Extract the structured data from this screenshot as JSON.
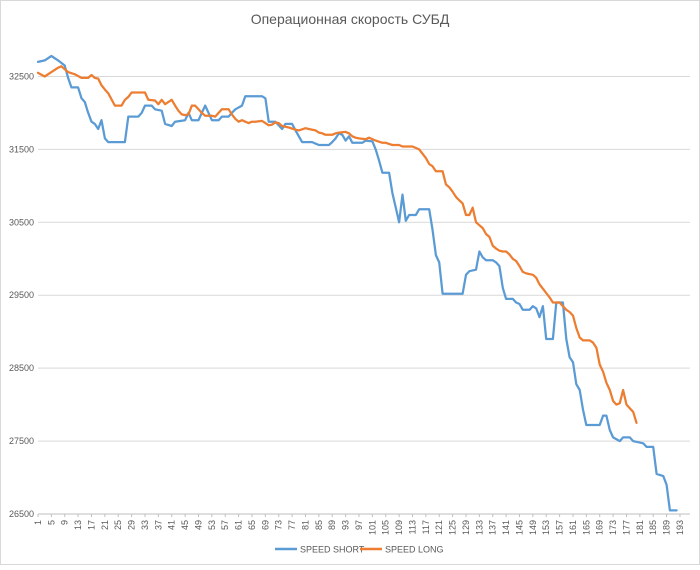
{
  "chart_data": {
    "type": "line",
    "title": "Операционная скорость СУБД",
    "xlabel": "",
    "ylabel": "",
    "x_range": [
      1,
      196
    ],
    "ylim": [
      26500,
      33000
    ],
    "y_ticks": [
      26500,
      27500,
      28500,
      29500,
      30500,
      31500,
      32500
    ],
    "x_tick_labels": [
      1,
      5,
      9,
      13,
      17,
      21,
      25,
      29,
      33,
      37,
      41,
      45,
      49,
      53,
      57,
      61,
      65,
      69,
      73,
      77,
      81,
      85,
      89,
      93,
      97,
      101,
      105,
      109,
      113,
      117,
      121,
      125,
      129,
      133,
      137,
      141,
      145,
      149,
      153,
      157,
      161,
      165,
      169,
      173,
      177,
      181,
      185,
      189,
      193
    ],
    "grid": "horizontal",
    "legend_position": "bottom",
    "series": [
      {
        "name": "SPEED SHORT",
        "color": "#5B9BD5",
        "points": [
          [
            1,
            32700
          ],
          [
            3,
            32720
          ],
          [
            5,
            32780
          ],
          [
            7,
            32720
          ],
          [
            9,
            32650
          ],
          [
            10,
            32480
          ],
          [
            11,
            32350
          ],
          [
            13,
            32350
          ],
          [
            14,
            32200
          ],
          [
            15,
            32150
          ],
          [
            16,
            32000
          ],
          [
            17,
            31880
          ],
          [
            18,
            31850
          ],
          [
            19,
            31780
          ],
          [
            20,
            31900
          ],
          [
            21,
            31650
          ],
          [
            22,
            31600
          ],
          [
            27,
            31600
          ],
          [
            28,
            31950
          ],
          [
            31,
            31950
          ],
          [
            32,
            32000
          ],
          [
            33,
            32100
          ],
          [
            35,
            32100
          ],
          [
            36,
            32050
          ],
          [
            38,
            32030
          ],
          [
            39,
            31850
          ],
          [
            41,
            31820
          ],
          [
            42,
            31880
          ],
          [
            45,
            31900
          ],
          [
            46,
            32000
          ],
          [
            47,
            31900
          ],
          [
            49,
            31900
          ],
          [
            50,
            32000
          ],
          [
            51,
            32100
          ],
          [
            53,
            31900
          ],
          [
            55,
            31900
          ],
          [
            56,
            31950
          ],
          [
            58,
            31950
          ],
          [
            59,
            32000
          ],
          [
            60,
            32050
          ],
          [
            62,
            32100
          ],
          [
            63,
            32230
          ],
          [
            68,
            32230
          ],
          [
            69,
            32200
          ],
          [
            70,
            31880
          ],
          [
            72,
            31880
          ],
          [
            74,
            31780
          ],
          [
            75,
            31850
          ],
          [
            77,
            31850
          ],
          [
            78,
            31760
          ],
          [
            80,
            31600
          ],
          [
            83,
            31600
          ],
          [
            84,
            31580
          ],
          [
            85,
            31560
          ],
          [
            88,
            31560
          ],
          [
            89,
            31600
          ],
          [
            90,
            31650
          ],
          [
            91,
            31720
          ],
          [
            92,
            31700
          ],
          [
            93,
            31620
          ],
          [
            94,
            31680
          ],
          [
            95,
            31590
          ],
          [
            98,
            31590
          ],
          [
            99,
            31620
          ],
          [
            101,
            31610
          ],
          [
            102,
            31500
          ],
          [
            103,
            31350
          ],
          [
            104,
            31180
          ],
          [
            106,
            31180
          ],
          [
            107,
            30900
          ],
          [
            108,
            30700
          ],
          [
            109,
            30500
          ],
          [
            110,
            30880
          ],
          [
            111,
            30520
          ],
          [
            112,
            30600
          ],
          [
            114,
            30600
          ],
          [
            115,
            30680
          ],
          [
            118,
            30680
          ],
          [
            119,
            30400
          ],
          [
            120,
            30050
          ],
          [
            121,
            29950
          ],
          [
            122,
            29520
          ],
          [
            128,
            29520
          ],
          [
            129,
            29780
          ],
          [
            130,
            29830
          ],
          [
            132,
            29850
          ],
          [
            133,
            30100
          ],
          [
            134,
            30020
          ],
          [
            135,
            29980
          ],
          [
            137,
            29980
          ],
          [
            138,
            29950
          ],
          [
            139,
            29900
          ],
          [
            140,
            29600
          ],
          [
            141,
            29450
          ],
          [
            143,
            29450
          ],
          [
            144,
            29400
          ],
          [
            145,
            29380
          ],
          [
            146,
            29300
          ],
          [
            148,
            29300
          ],
          [
            149,
            29350
          ],
          [
            150,
            29320
          ],
          [
            151,
            29200
          ],
          [
            152,
            29350
          ],
          [
            153,
            28900
          ],
          [
            155,
            28900
          ],
          [
            156,
            29400
          ],
          [
            158,
            29400
          ],
          [
            159,
            28900
          ],
          [
            160,
            28650
          ],
          [
            161,
            28580
          ],
          [
            162,
            28280
          ],
          [
            163,
            28200
          ],
          [
            164,
            27930
          ],
          [
            165,
            27720
          ],
          [
            169,
            27720
          ],
          [
            170,
            27850
          ],
          [
            171,
            27850
          ],
          [
            172,
            27650
          ],
          [
            173,
            27550
          ],
          [
            175,
            27500
          ],
          [
            176,
            27550
          ],
          [
            178,
            27550
          ],
          [
            179,
            27500
          ],
          [
            182,
            27470
          ],
          [
            183,
            27420
          ],
          [
            185,
            27420
          ],
          [
            186,
            27050
          ],
          [
            188,
            27020
          ],
          [
            189,
            26900
          ],
          [
            190,
            26550
          ],
          [
            192,
            26550
          ]
        ]
      },
      {
        "name": "SPEED LONG",
        "color": "#ED7D31",
        "points": [
          [
            1,
            32550
          ],
          [
            3,
            32500
          ],
          [
            5,
            32560
          ],
          [
            7,
            32620
          ],
          [
            8,
            32640
          ],
          [
            10,
            32560
          ],
          [
            12,
            32530
          ],
          [
            14,
            32480
          ],
          [
            16,
            32480
          ],
          [
            17,
            32520
          ],
          [
            18,
            32480
          ],
          [
            19,
            32470
          ],
          [
            20,
            32380
          ],
          [
            21,
            32320
          ],
          [
            22,
            32270
          ],
          [
            24,
            32100
          ],
          [
            26,
            32100
          ],
          [
            27,
            32180
          ],
          [
            28,
            32220
          ],
          [
            29,
            32280
          ],
          [
            33,
            32280
          ],
          [
            34,
            32180
          ],
          [
            36,
            32170
          ],
          [
            37,
            32120
          ],
          [
            38,
            32180
          ],
          [
            39,
            32120
          ],
          [
            41,
            32180
          ],
          [
            42,
            32100
          ],
          [
            43,
            32030
          ],
          [
            44,
            31980
          ],
          [
            45,
            31970
          ],
          [
            46,
            31980
          ],
          [
            47,
            32100
          ],
          [
            48,
            32100
          ],
          [
            49,
            32050
          ],
          [
            50,
            32000
          ],
          [
            51,
            31960
          ],
          [
            53,
            31960
          ],
          [
            54,
            31950
          ],
          [
            55,
            32000
          ],
          [
            56,
            32050
          ],
          [
            58,
            32050
          ],
          [
            59,
            31980
          ],
          [
            60,
            31920
          ],
          [
            61,
            31880
          ],
          [
            62,
            31900
          ],
          [
            63,
            31880
          ],
          [
            64,
            31860
          ],
          [
            65,
            31880
          ],
          [
            66,
            31880
          ],
          [
            68,
            31890
          ],
          [
            69,
            31860
          ],
          [
            70,
            31830
          ],
          [
            71,
            31840
          ],
          [
            72,
            31870
          ],
          [
            73,
            31860
          ],
          [
            74,
            31820
          ],
          [
            76,
            31800
          ],
          [
            78,
            31770
          ],
          [
            79,
            31760
          ],
          [
            81,
            31790
          ],
          [
            82,
            31780
          ],
          [
            84,
            31760
          ],
          [
            85,
            31730
          ],
          [
            86,
            31720
          ],
          [
            87,
            31700
          ],
          [
            89,
            31700
          ],
          [
            90,
            31720
          ],
          [
            91,
            31730
          ],
          [
            93,
            31740
          ],
          [
            94,
            31720
          ],
          [
            95,
            31680
          ],
          [
            96,
            31660
          ],
          [
            97,
            31650
          ],
          [
            99,
            31640
          ],
          [
            100,
            31660
          ],
          [
            102,
            31620
          ],
          [
            104,
            31590
          ],
          [
            105,
            31590
          ],
          [
            107,
            31560
          ],
          [
            109,
            31560
          ],
          [
            110,
            31540
          ],
          [
            113,
            31540
          ],
          [
            115,
            31500
          ],
          [
            117,
            31380
          ],
          [
            118,
            31300
          ],
          [
            119,
            31270
          ],
          [
            120,
            31200
          ],
          [
            122,
            31200
          ],
          [
            123,
            31020
          ],
          [
            124,
            30980
          ],
          [
            125,
            30920
          ],
          [
            126,
            30850
          ],
          [
            127,
            30800
          ],
          [
            128,
            30760
          ],
          [
            129,
            30600
          ],
          [
            130,
            30600
          ],
          [
            131,
            30700
          ],
          [
            132,
            30500
          ],
          [
            133,
            30460
          ],
          [
            134,
            30420
          ],
          [
            135,
            30340
          ],
          [
            136,
            30300
          ],
          [
            137,
            30180
          ],
          [
            138,
            30140
          ],
          [
            139,
            30110
          ],
          [
            140,
            30100
          ],
          [
            141,
            30100
          ],
          [
            142,
            30060
          ],
          [
            143,
            30000
          ],
          [
            144,
            29970
          ],
          [
            145,
            29900
          ],
          [
            146,
            29820
          ],
          [
            147,
            29800
          ],
          [
            149,
            29780
          ],
          [
            150,
            29740
          ],
          [
            151,
            29650
          ],
          [
            152,
            29590
          ],
          [
            153,
            29530
          ],
          [
            154,
            29470
          ],
          [
            155,
            29400
          ],
          [
            157,
            29400
          ],
          [
            158,
            29350
          ],
          [
            159,
            29300
          ],
          [
            160,
            29270
          ],
          [
            161,
            29220
          ],
          [
            162,
            29050
          ],
          [
            163,
            28920
          ],
          [
            164,
            28880
          ],
          [
            166,
            28880
          ],
          [
            167,
            28850
          ],
          [
            168,
            28780
          ],
          [
            169,
            28550
          ],
          [
            170,
            28450
          ],
          [
            171,
            28300
          ],
          [
            172,
            28200
          ],
          [
            173,
            28050
          ],
          [
            174,
            28000
          ],
          [
            175,
            28020
          ],
          [
            176,
            28200
          ],
          [
            177,
            28000
          ],
          [
            178,
            27950
          ],
          [
            179,
            27900
          ],
          [
            180,
            27750
          ]
        ]
      }
    ]
  }
}
